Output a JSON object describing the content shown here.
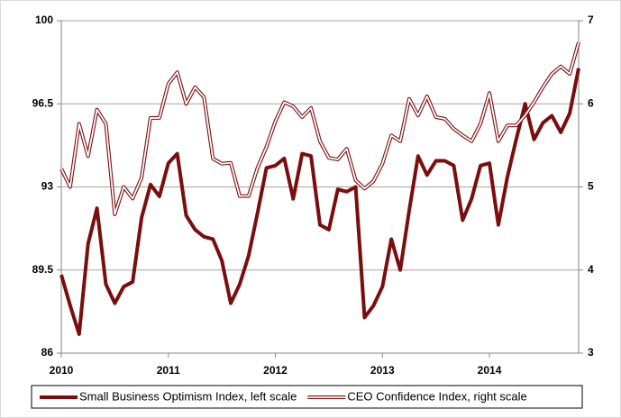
{
  "chart_data": {
    "type": "line",
    "categories": [
      "2010",
      null,
      null,
      null,
      null,
      null,
      null,
      null,
      null,
      null,
      null,
      null,
      "2011",
      null,
      null,
      null,
      null,
      null,
      null,
      null,
      null,
      null,
      null,
      null,
      "2012",
      null,
      null,
      null,
      null,
      null,
      null,
      null,
      null,
      null,
      null,
      null,
      "2013",
      null,
      null,
      null,
      null,
      null,
      null,
      null,
      null,
      null,
      null,
      null,
      "2014",
      null,
      null,
      null,
      null,
      null,
      null,
      null,
      null,
      null,
      null
    ],
    "ylim": [
      86,
      100
    ],
    "yticks": [
      86,
      89.5,
      93,
      96.5,
      100
    ],
    "y2lim": [
      3,
      7
    ],
    "y2ticks": [
      3,
      4,
      5,
      6,
      7
    ],
    "grid": true,
    "legend": "bottom",
    "series": [
      {
        "name": "Small Business Optimism Index, left scale",
        "color": "#7a0e0e",
        "line_style": "solid",
        "values": [
          89.3,
          88.0,
          86.8,
          90.6,
          92.1,
          88.9,
          88.1,
          88.8,
          89.0,
          91.7,
          93.1,
          92.6,
          94.0,
          94.4,
          91.8,
          91.2,
          90.9,
          90.8,
          89.9,
          88.1,
          88.9,
          90.1,
          91.9,
          93.8,
          93.9,
          94.2,
          92.5,
          94.4,
          94.3,
          91.4,
          91.2,
          92.9,
          92.8,
          93.0,
          87.5,
          88.0,
          88.8,
          90.8,
          89.5,
          92.0,
          94.3,
          93.5,
          94.1,
          94.1,
          93.9,
          91.6,
          92.5,
          93.9,
          94.0,
          91.4,
          93.4,
          95.0,
          96.5,
          95.0,
          95.7,
          96.0,
          95.3,
          96.1,
          98.0
        ]
      },
      {
        "name": "CEO Confidence Index, right scale",
        "color": "#7a0e0e",
        "line_style": "double",
        "axis": "y2",
        "values": [
          5.22,
          5.0,
          5.76,
          5.37,
          5.93,
          5.76,
          4.67,
          5.0,
          4.86,
          5.11,
          5.83,
          5.83,
          6.24,
          6.38,
          6.0,
          6.2,
          6.08,
          5.34,
          5.28,
          5.29,
          4.89,
          4.89,
          5.23,
          5.48,
          5.79,
          6.02,
          5.97,
          5.84,
          5.95,
          5.55,
          5.35,
          5.33,
          5.46,
          5.08,
          4.98,
          5.07,
          5.28,
          5.62,
          5.55,
          6.06,
          5.86,
          6.09,
          5.84,
          5.82,
          5.7,
          5.62,
          5.55,
          5.76,
          6.13,
          5.55,
          5.74,
          5.74,
          5.86,
          6.02,
          6.2,
          6.36,
          6.45,
          6.36,
          6.74
        ]
      }
    ]
  }
}
